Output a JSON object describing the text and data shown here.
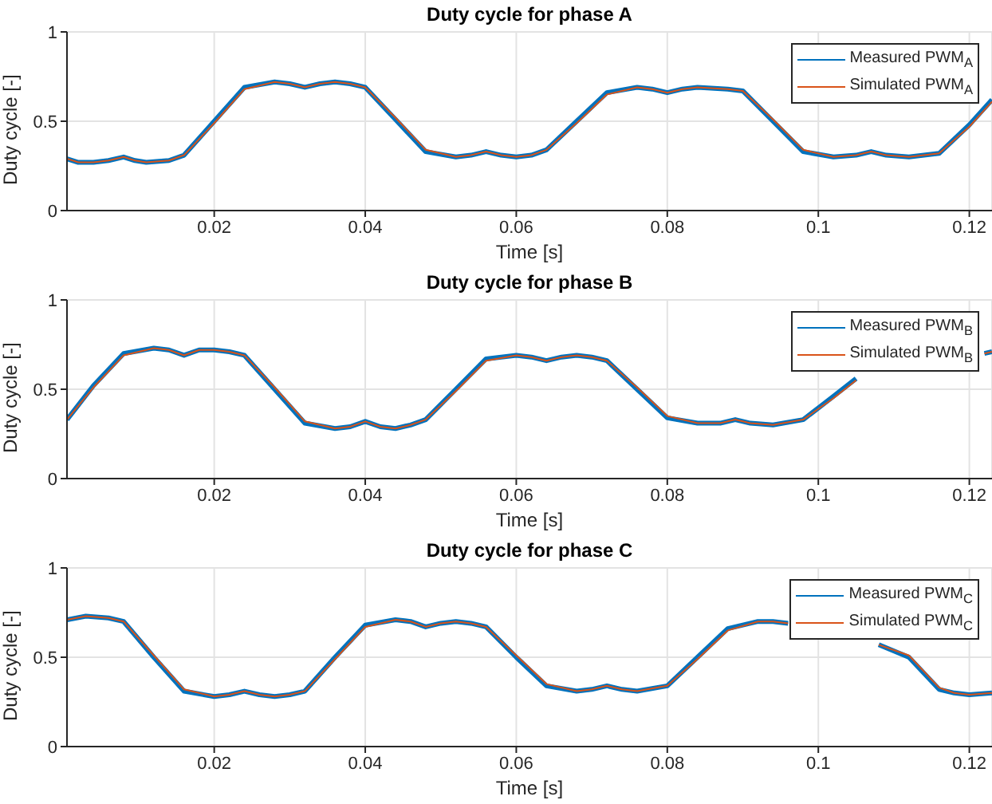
{
  "chart_data": [
    {
      "type": "line",
      "title": "Duty cycle for phase A",
      "xlabel": "Time [s]",
      "ylabel": "Duty cycle [-]",
      "xlim": [
        0.0005,
        0.123
      ],
      "xticks": [
        0.02,
        0.04,
        0.06,
        0.08,
        0.1,
        0.12
      ],
      "ylim": [
        0,
        1
      ],
      "yticks": [
        0,
        0.5,
        1
      ],
      "grid": true,
      "legend": "top right",
      "x": [
        0.0005,
        0.002,
        0.004,
        0.006,
        0.008,
        0.0095,
        0.011,
        0.014,
        0.016,
        0.02,
        0.024,
        0.028,
        0.03,
        0.032,
        0.034,
        0.036,
        0.038,
        0.04,
        0.044,
        0.048,
        0.052,
        0.054,
        0.056,
        0.058,
        0.06,
        0.062,
        0.064,
        0.068,
        0.072,
        0.076,
        0.078,
        0.08,
        0.082,
        0.084,
        0.088,
        0.09,
        0.094,
        0.098,
        0.102,
        0.105,
        0.107,
        0.109,
        0.112,
        0.116,
        0.12,
        0.123
      ],
      "series": [
        {
          "name": "Measured PWM$_{A}$",
          "color": "#0072bd",
          "values": [
            0.29,
            0.27,
            0.27,
            0.28,
            0.3,
            0.28,
            0.27,
            0.28,
            0.31,
            0.5,
            0.69,
            0.72,
            0.71,
            0.69,
            0.71,
            0.72,
            0.71,
            0.69,
            0.51,
            0.33,
            0.3,
            0.31,
            0.33,
            0.31,
            0.3,
            0.31,
            0.34,
            0.5,
            0.66,
            0.69,
            0.68,
            0.66,
            0.68,
            0.69,
            0.68,
            0.67,
            0.5,
            0.33,
            0.3,
            0.31,
            0.33,
            0.31,
            0.3,
            0.32,
            0.48,
            0.62
          ]
        },
        {
          "name": "Simulated PWM$_{A}$",
          "color": "#d95319",
          "values": [
            0.29,
            0.27,
            0.27,
            0.28,
            0.3,
            0.28,
            0.27,
            0.28,
            0.31,
            0.49,
            0.68,
            0.72,
            0.71,
            0.69,
            0.71,
            0.72,
            0.71,
            0.69,
            0.52,
            0.34,
            0.3,
            0.31,
            0.33,
            0.31,
            0.3,
            0.31,
            0.34,
            0.49,
            0.65,
            0.69,
            0.68,
            0.66,
            0.68,
            0.69,
            0.68,
            0.67,
            0.51,
            0.34,
            0.3,
            0.31,
            0.33,
            0.31,
            0.3,
            0.32,
            0.47,
            0.61
          ]
        }
      ]
    },
    {
      "type": "line",
      "title": "Duty cycle for phase B",
      "xlabel": "Time [s]",
      "ylabel": "Duty cycle [-]",
      "xlim": [
        0.0005,
        0.123
      ],
      "xticks": [
        0.02,
        0.04,
        0.06,
        0.08,
        0.1,
        0.12
      ],
      "ylim": [
        0,
        1
      ],
      "yticks": [
        0,
        0.5,
        1
      ],
      "grid": true,
      "legend": "top right",
      "x": [
        0.0005,
        0.004,
        0.008,
        0.012,
        0.014,
        0.016,
        0.018,
        0.02,
        0.022,
        0.024,
        0.028,
        0.032,
        0.036,
        0.038,
        0.04,
        0.042,
        0.044,
        0.046,
        0.048,
        0.052,
        0.056,
        0.06,
        0.062,
        0.064,
        0.066,
        0.068,
        0.07,
        0.072,
        0.076,
        0.08,
        0.084,
        0.087,
        0.089,
        0.091,
        0.094,
        0.098,
        0.102,
        0.105,
        0.112,
        0.122,
        0.123
      ],
      "series": [
        {
          "name": "Measured PWM$_{B}$",
          "color": "#0072bd",
          "values": [
            0.33,
            0.52,
            0.7,
            0.73,
            0.72,
            0.69,
            0.72,
            0.72,
            0.71,
            0.69,
            0.5,
            0.31,
            0.28,
            0.29,
            0.32,
            0.29,
            0.28,
            0.3,
            0.33,
            0.5,
            0.67,
            0.69,
            0.68,
            0.66,
            0.68,
            0.69,
            0.68,
            0.66,
            0.5,
            0.34,
            0.31,
            0.31,
            0.33,
            0.31,
            0.3,
            0.33,
            0.46,
            0.56,
            null,
            0.7,
            0.71
          ]
        },
        {
          "name": "Simulated PWM$_{B}$",
          "color": "#d95319",
          "values": [
            0.33,
            0.51,
            0.69,
            0.73,
            0.72,
            0.69,
            0.72,
            0.72,
            0.71,
            0.69,
            0.51,
            0.32,
            0.28,
            0.29,
            0.32,
            0.29,
            0.28,
            0.3,
            0.33,
            0.49,
            0.66,
            0.69,
            0.68,
            0.66,
            0.68,
            0.69,
            0.68,
            0.66,
            0.51,
            0.35,
            0.31,
            0.31,
            0.33,
            0.31,
            0.3,
            0.33,
            0.45,
            0.55,
            null,
            0.7,
            0.71
          ]
        }
      ]
    },
    {
      "type": "line",
      "title": "Duty cycle for phase C",
      "xlabel": "Time [s]",
      "ylabel": "Duty cycle [-]",
      "xlim": [
        0.0005,
        0.123
      ],
      "xticks": [
        0.02,
        0.04,
        0.06,
        0.08,
        0.1,
        0.12
      ],
      "ylim": [
        0,
        1
      ],
      "yticks": [
        0,
        0.5,
        1
      ],
      "grid": true,
      "legend": "top right",
      "x": [
        0.0005,
        0.003,
        0.006,
        0.008,
        0.012,
        0.016,
        0.02,
        0.022,
        0.024,
        0.026,
        0.028,
        0.03,
        0.032,
        0.036,
        0.04,
        0.044,
        0.046,
        0.048,
        0.05,
        0.052,
        0.054,
        0.056,
        0.06,
        0.064,
        0.068,
        0.07,
        0.072,
        0.074,
        0.076,
        0.08,
        0.084,
        0.088,
        0.092,
        0.094,
        0.096,
        0.102,
        0.108,
        0.112,
        0.116,
        0.118,
        0.12,
        0.123
      ],
      "series": [
        {
          "name": "Measured PWM$_{C}$",
          "color": "#0072bd",
          "values": [
            0.71,
            0.73,
            0.72,
            0.7,
            0.5,
            0.31,
            0.28,
            0.29,
            0.31,
            0.29,
            0.28,
            0.29,
            0.31,
            0.5,
            0.68,
            0.71,
            0.7,
            0.67,
            0.69,
            0.7,
            0.69,
            0.67,
            0.5,
            0.34,
            0.31,
            0.32,
            0.34,
            0.32,
            0.31,
            0.34,
            0.5,
            0.66,
            0.7,
            0.7,
            0.69,
            null,
            0.57,
            0.5,
            0.32,
            0.3,
            0.29,
            0.3
          ]
        },
        {
          "name": "Simulated PWM$_{C}$",
          "color": "#d95319",
          "values": [
            0.71,
            0.73,
            0.72,
            0.7,
            0.51,
            0.32,
            0.28,
            0.29,
            0.31,
            0.29,
            0.28,
            0.29,
            0.31,
            0.49,
            0.67,
            0.71,
            0.7,
            0.67,
            0.69,
            0.7,
            0.69,
            0.67,
            0.51,
            0.35,
            0.31,
            0.32,
            0.34,
            0.32,
            0.31,
            0.34,
            0.49,
            0.65,
            0.7,
            0.7,
            0.69,
            null,
            0.57,
            0.51,
            0.33,
            0.3,
            0.29,
            0.3
          ]
        }
      ]
    }
  ]
}
